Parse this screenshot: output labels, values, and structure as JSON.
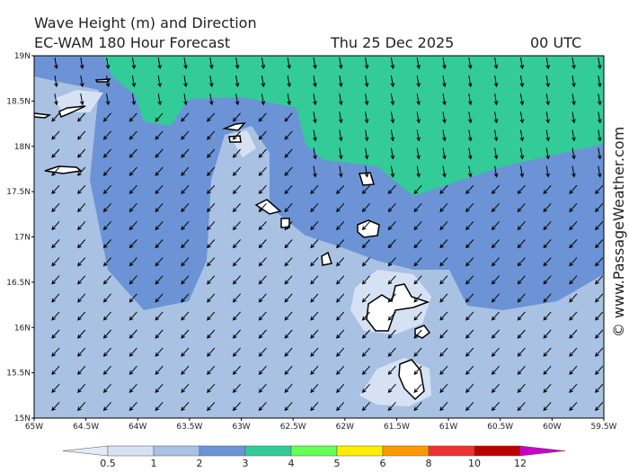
{
  "header": {
    "title": "Wave Height (m) and Direction",
    "model": "EC-WAM 180 Hour Forecast",
    "date": "Thu 25 Dec 2025",
    "time": "00 UTC"
  },
  "map": {
    "lat_labels": [
      "19N",
      "18.5N",
      "18N",
      "17.5N",
      "17N",
      "16.5N",
      "16N",
      "15.5N",
      "15N"
    ],
    "lon_labels": [
      "65W",
      "64.5W",
      "64W",
      "63.5W",
      "63W",
      "62.5W",
      "62W",
      "61.5W",
      "61W",
      "60.5W",
      "60W",
      "59.5W"
    ]
  },
  "colorbar": {
    "labels": [
      0.5,
      1,
      2,
      3,
      4,
      5,
      6,
      8,
      10,
      12
    ],
    "colors": [
      "#e2eaf8",
      "#d6e2f4",
      "#a9c1e3",
      "#6b93d6",
      "#33cc99",
      "#66ff55",
      "#ffee00",
      "#ff9900",
      "#ee3333",
      "#bb0000",
      "#cc00cc"
    ]
  },
  "watermark": "© www.PassageWeather.com"
}
